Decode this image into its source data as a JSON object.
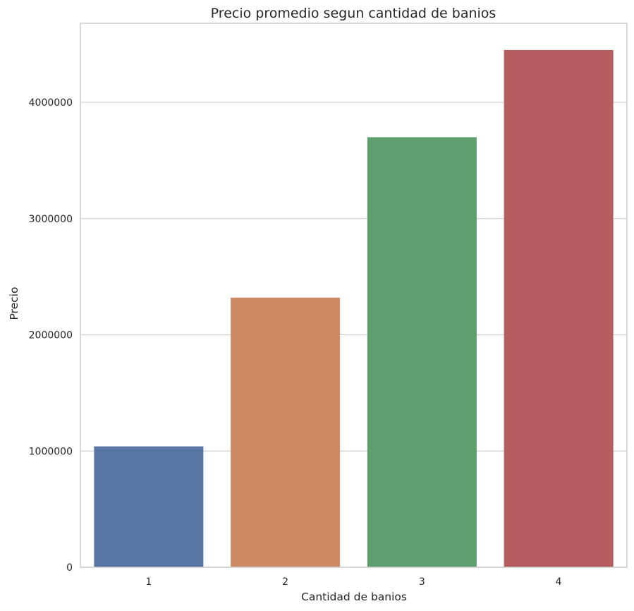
{
  "chart_data": {
    "type": "bar",
    "title": "Precio promedio segun cantidad de banios",
    "xlabel": "Cantidad de banios",
    "ylabel": "Precio",
    "categories": [
      "1",
      "2",
      "3",
      "4"
    ],
    "values": [
      1040000,
      2320000,
      3700000,
      4450000
    ],
    "colors": [
      "#5975a4",
      "#cc8963",
      "#5f9e6e",
      "#b55d60"
    ],
    "ylim": [
      0,
      4680000
    ],
    "yticks": [
      0,
      1000000,
      2000000,
      3000000,
      4000000
    ],
    "ytick_labels": [
      "0",
      "1000000",
      "2000000",
      "3000000",
      "4000000"
    ],
    "grid": "horizontal",
    "legend": "none"
  }
}
